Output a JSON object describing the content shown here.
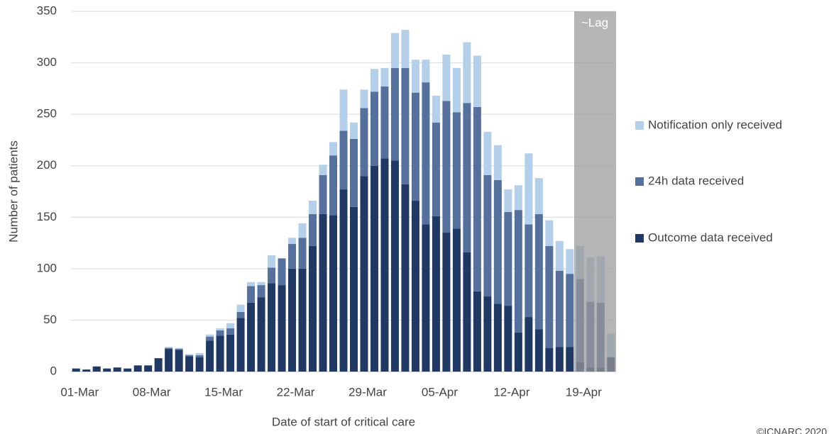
{
  "chart_data": {
    "type": "stacked_bar",
    "x_label": "Date of start of critical care",
    "y_label": "Number of patients",
    "annotation": "~Lag",
    "credit": "©ICNARC 2020",
    "categories": [
      "01-Mar",
      null,
      null,
      null,
      null,
      null,
      null,
      "08-Mar",
      null,
      null,
      null,
      null,
      null,
      null,
      "15-Mar",
      null,
      null,
      null,
      null,
      null,
      null,
      "22-Mar",
      null,
      null,
      null,
      null,
      null,
      null,
      "29-Mar",
      null,
      null,
      null,
      null,
      null,
      null,
      "05-Apr",
      null,
      null,
      null,
      null,
      null,
      null,
      "12-Apr",
      null,
      null,
      null,
      null,
      null,
      null,
      "19-Apr",
      null,
      null,
      null
    ],
    "series": [
      {
        "name": "Outcome data received",
        "color": "#203864",
        "values": [
          3,
          2,
          5,
          3,
          4,
          3,
          6,
          6,
          13,
          22,
          21,
          15,
          14,
          30,
          35,
          36,
          52,
          67,
          72,
          86,
          84,
          100,
          100,
          122,
          153,
          152,
          177,
          160,
          190,
          200,
          207,
          205,
          182,
          166,
          143,
          151,
          135,
          139,
          116,
          78,
          73,
          66,
          64,
          38,
          53,
          41,
          23,
          24,
          24,
          9,
          4,
          4,
          14
        ]
      },
      {
        "name": "24h data received",
        "color": "#56709e",
        "values": [
          0,
          0,
          0,
          0,
          0,
          0,
          0,
          0,
          0,
          1,
          1,
          1,
          2,
          4,
          5,
          6,
          6,
          16,
          12,
          15,
          26,
          24,
          30,
          31,
          38,
          58,
          57,
          66,
          66,
          72,
          70,
          90,
          113,
          105,
          138,
          91,
          128,
          113,
          145,
          179,
          118,
          120,
          91,
          119,
          90,
          112,
          99,
          74,
          71,
          81,
          64,
          63,
          0
        ]
      },
      {
        "name": "Notification only received",
        "color": "#b4cfe9",
        "values": [
          0,
          0,
          0,
          0,
          0,
          0,
          0,
          0,
          0,
          1,
          1,
          1,
          2,
          2,
          2,
          5,
          7,
          4,
          3,
          12,
          0,
          6,
          14,
          13,
          10,
          13,
          40,
          16,
          18,
          22,
          18,
          34,
          37,
          32,
          22,
          26,
          45,
          43,
          59,
          50,
          42,
          34,
          22,
          24,
          69,
          35,
          25,
          29,
          24,
          32,
          43,
          45,
          23
        ]
      }
    ],
    "ylim": [
      0,
      350
    ],
    "yticks": [
      0,
      50,
      100,
      150,
      200,
      250,
      300,
      350
    ],
    "grid": true,
    "legend": "right"
  }
}
